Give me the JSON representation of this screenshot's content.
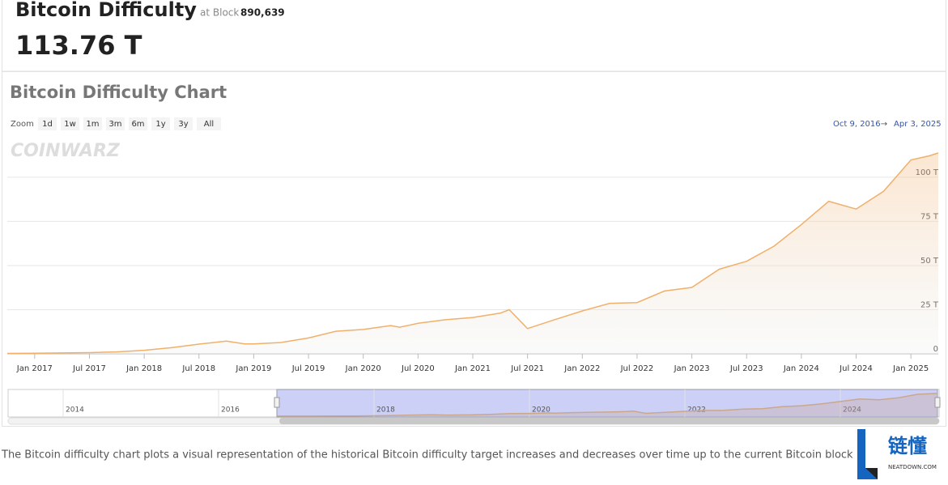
{
  "header": {
    "title": "Bitcoin Difficulty",
    "block_prefix": "at Block",
    "block": "890,639",
    "difficulty": "113.76 T"
  },
  "chart_data": {
    "type": "line",
    "title": "Bitcoin Difficulty Chart",
    "zoom_label": "Zoom",
    "zoom_buttons": [
      "1d",
      "1w",
      "1m",
      "3m",
      "6m",
      "1y",
      "3y",
      "All"
    ],
    "range_from": "Oct 9, 2016",
    "range_arrow": "→",
    "range_to": "Apr 3, 2025",
    "watermark": "COINWARZ",
    "x": [
      "2016-10",
      "2017-01",
      "2017-04",
      "2017-07",
      "2017-10",
      "2018-01",
      "2018-04",
      "2018-07",
      "2018-10",
      "2018-12",
      "2019-01",
      "2019-04",
      "2019-07",
      "2019-10",
      "2020-01",
      "2020-04",
      "2020-05",
      "2020-07",
      "2020-10",
      "2021-01",
      "2021-04",
      "2021-05",
      "2021-07",
      "2021-10",
      "2022-01",
      "2022-04",
      "2022-07",
      "2022-10",
      "2023-01",
      "2023-04",
      "2023-07",
      "2023-10",
      "2024-01",
      "2024-04",
      "2024-07",
      "2024-10",
      "2025-01",
      "2025-03",
      "2025-04"
    ],
    "series": [
      {
        "color": "#f0b06a",
        "values": [
          0.25,
          0.34,
          0.5,
          0.7,
          1.1,
          2.0,
          3.5,
          5.5,
          7.2,
          5.6,
          5.6,
          6.4,
          9.0,
          12.8,
          13.8,
          16.0,
          15.1,
          17.3,
          19.3,
          20.6,
          23.0,
          25.0,
          14.3,
          19.4,
          24.3,
          28.6,
          29.0,
          35.6,
          37.6,
          47.9,
          52.4,
          61.0,
          73.2,
          86.4,
          82.0,
          92.0,
          109.8,
          112.1,
          113.76
        ]
      }
    ],
    "xlim": [
      "2016-10",
      "2025-04"
    ],
    "xticks": [
      {
        "value": "2017-01",
        "label": "Jan 2017"
      },
      {
        "value": "2017-07",
        "label": "Jul 2017"
      },
      {
        "value": "2018-01",
        "label": "Jan 2018"
      },
      {
        "value": "2018-07",
        "label": "Jul 2018"
      },
      {
        "value": "2019-01",
        "label": "Jan 2019"
      },
      {
        "value": "2019-07",
        "label": "Jul 2019"
      },
      {
        "value": "2020-01",
        "label": "Jan 2020"
      },
      {
        "value": "2020-07",
        "label": "Jul 2020"
      },
      {
        "value": "2021-01",
        "label": "Jan 2021"
      },
      {
        "value": "2021-07",
        "label": "Jul 2021"
      },
      {
        "value": "2022-01",
        "label": "Jan 2022"
      },
      {
        "value": "2022-07",
        "label": "Jul 2022"
      },
      {
        "value": "2023-01",
        "label": "Jan 2023"
      },
      {
        "value": "2023-07",
        "label": "Jul 2023"
      },
      {
        "value": "2024-01",
        "label": "Jan 2024"
      },
      {
        "value": "2024-07",
        "label": "Jul 2024"
      },
      {
        "value": "2025-01",
        "label": "Jan 2025"
      }
    ],
    "ylim": [
      0,
      121.5
    ],
    "yticks": [
      0,
      {
        "value": 25,
        "label": "25 T"
      },
      {
        "value": 50,
        "label": "50 T"
      },
      {
        "value": 75,
        "label": "75 T"
      },
      {
        "value": 100,
        "label": "100 T"
      }
    ],
    "grid": true,
    "navigator_ticks": [
      {
        "value": "2014-01",
        "label": "2014"
      },
      {
        "value": "2016-01",
        "label": "2016"
      },
      {
        "value": "2018-01",
        "label": "2018"
      },
      {
        "value": "2020-01",
        "label": "2020"
      },
      {
        "value": "2022-01",
        "label": "2022"
      },
      {
        "value": "2024-01",
        "label": "2024"
      }
    ]
  },
  "description": "The Bitcoin difficulty chart plots a visual representation of the historical Bitcoin difficulty target increases and decreases over time up to the current Bitcoin block.",
  "badge": {
    "name": "链懂",
    "site": "NEATDOWN.COM"
  }
}
